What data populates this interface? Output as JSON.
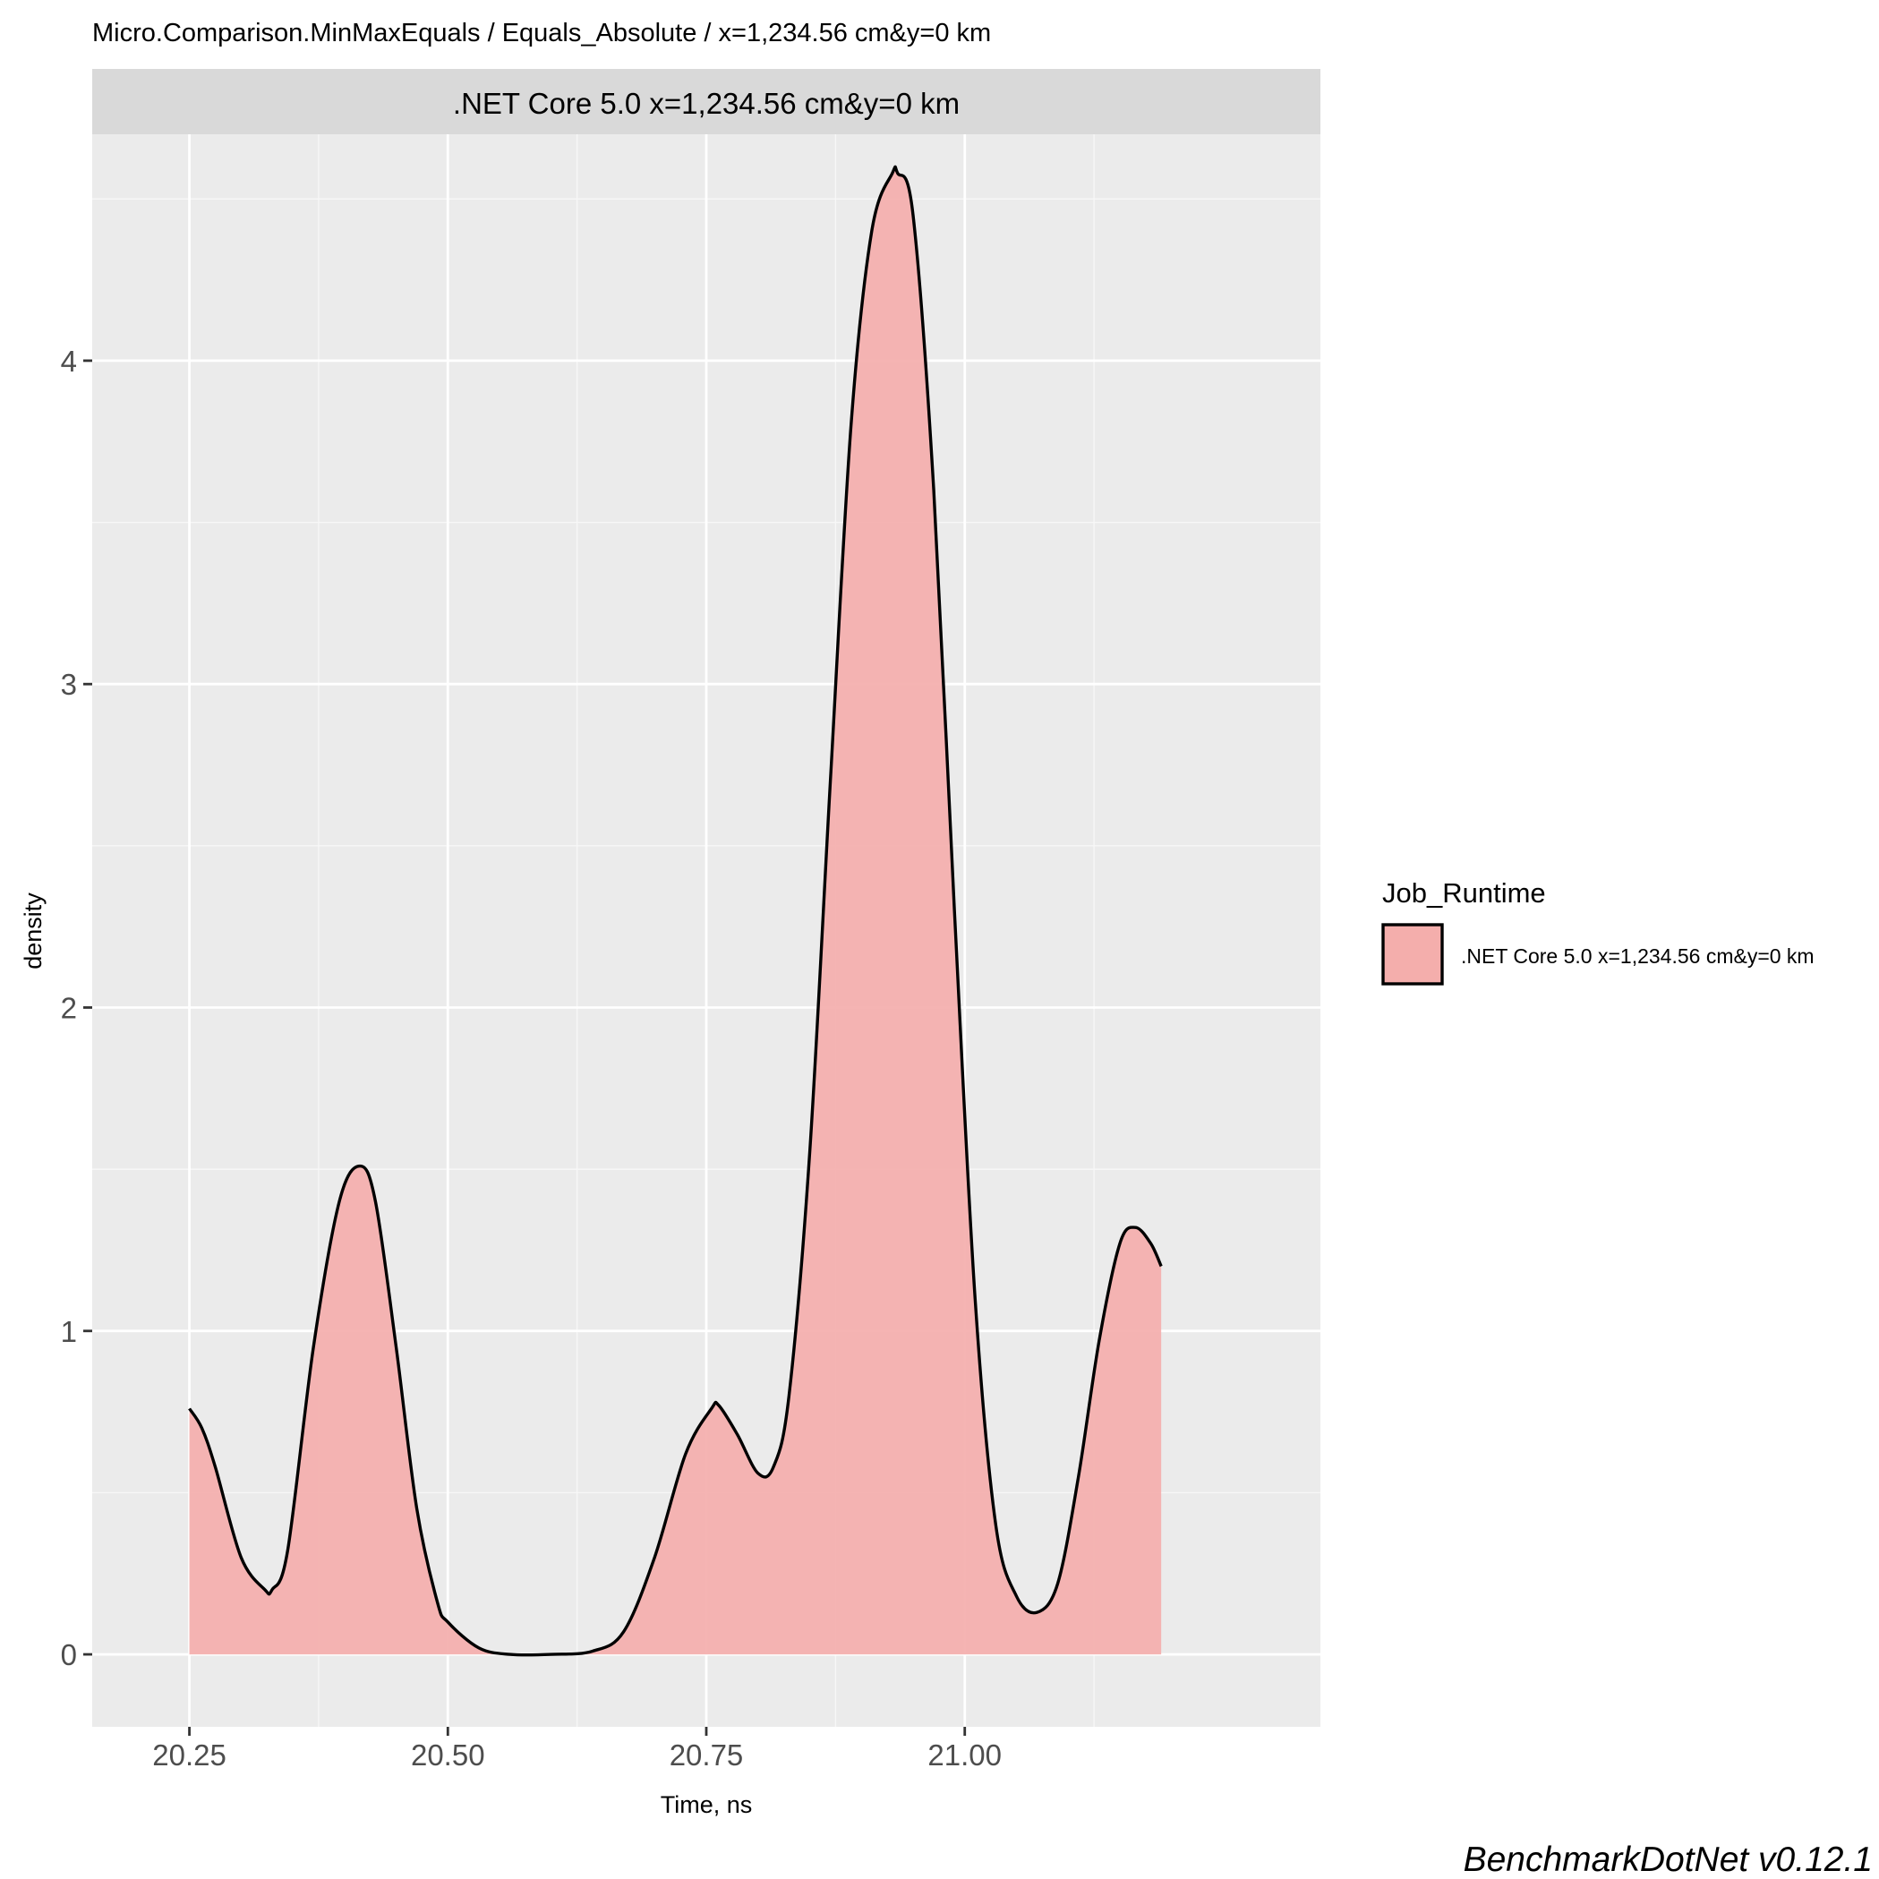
{
  "chart_data": {
    "type": "area",
    "title": "Micro.Comparison.MinMaxEquals / Equals_Absolute / x=1,234.56 cm&y=0 km",
    "facet_label": ".NET Core 5.0 x=1,234.56 cm&y=0 km",
    "xlabel": "Time, ns",
    "ylabel": "density",
    "xlim": [
      20.156,
      21.344
    ],
    "ylim": [
      -0.224,
      4.7
    ],
    "x_ticks": [
      20.25,
      20.5,
      20.75,
      21.0
    ],
    "x_tick_labels": [
      "20.25",
      "20.50",
      "20.75",
      "21.00"
    ],
    "y_ticks": [
      0,
      1,
      2,
      3,
      4
    ],
    "y_tick_labels": [
      "0",
      "1",
      "2",
      "3",
      "4"
    ],
    "grid": true,
    "legend": {
      "title": "Job_Runtime",
      "position": "right",
      "entries": [
        ".NET Core 5.0 x=1,234.56 cm&y=0 km"
      ]
    },
    "series": [
      {
        "name": ".NET Core 5.0 x=1,234.56 cm&y=0 km",
        "fill_color": "#f4aeac",
        "line_color": "#000000",
        "x": [
          20.25,
          20.262,
          20.275,
          20.3,
          20.323,
          20.33,
          20.345,
          20.37,
          20.395,
          20.415,
          20.43,
          20.45,
          20.47,
          20.49,
          20.5,
          20.53,
          20.56,
          20.6,
          20.64,
          20.67,
          20.7,
          20.73,
          20.755,
          20.762,
          20.78,
          20.8,
          20.815,
          20.83,
          20.85,
          20.87,
          20.89,
          20.91,
          20.93,
          20.935,
          20.95,
          20.97,
          20.99,
          21.01,
          21.03,
          21.05,
          21.07,
          21.09,
          21.11,
          21.13,
          21.15,
          21.165,
          21.18,
          21.19
        ],
        "y": [
          0.76,
          0.7,
          0.58,
          0.3,
          0.2,
          0.2,
          0.32,
          0.95,
          1.4,
          1.51,
          1.4,
          0.95,
          0.45,
          0.16,
          0.1,
          0.02,
          0.0,
          0.0,
          0.01,
          0.07,
          0.3,
          0.62,
          0.76,
          0.77,
          0.68,
          0.56,
          0.58,
          0.8,
          1.55,
          2.7,
          3.8,
          4.4,
          4.58,
          4.58,
          4.45,
          3.6,
          2.3,
          1.1,
          0.4,
          0.18,
          0.13,
          0.22,
          0.55,
          0.97,
          1.27,
          1.32,
          1.27,
          1.2
        ]
      }
    ],
    "watermark": "BenchmarkDotNet v0.12.1"
  }
}
